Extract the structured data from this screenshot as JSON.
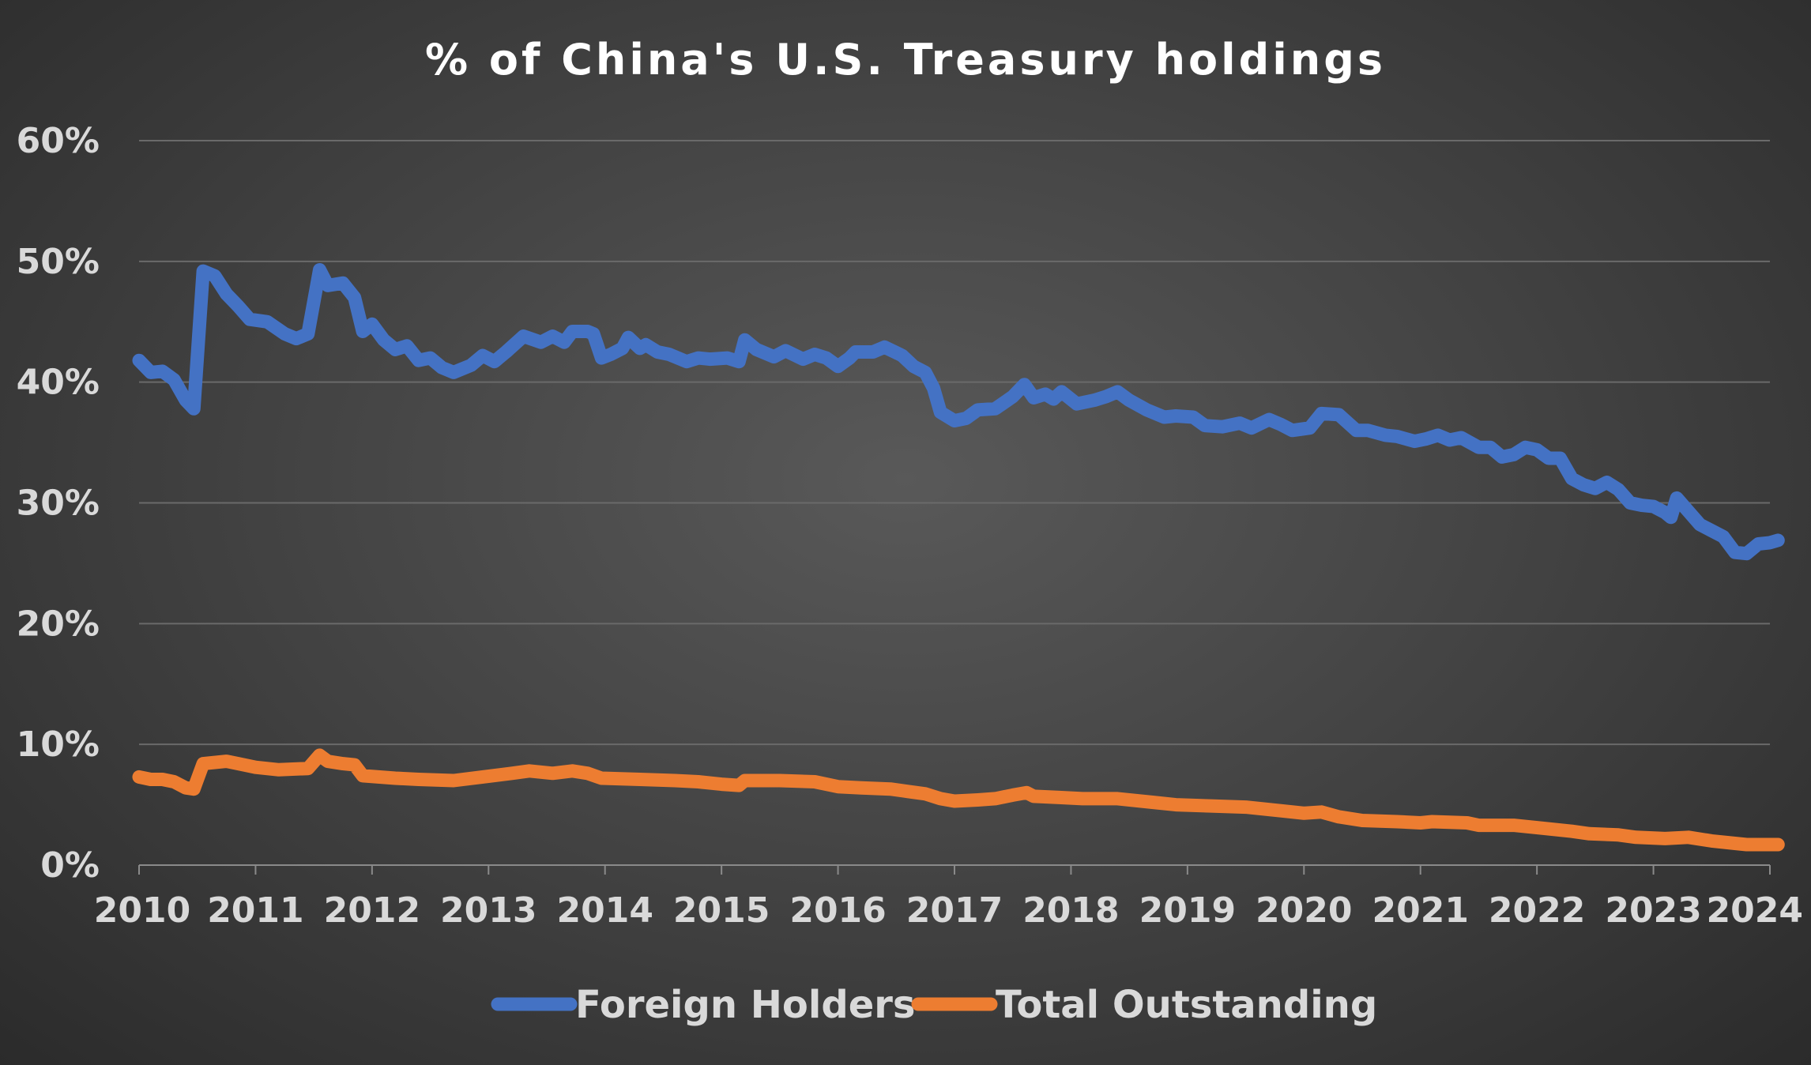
{
  "chart_data": {
    "type": "line",
    "title": "% of China's U.S. Treasury holdings",
    "xlabel": "",
    "ylabel": "",
    "xlim": [
      2010,
      2024
    ],
    "ylim": [
      0,
      60
    ],
    "x_ticks": [
      "2010",
      "2011",
      "2012",
      "2013",
      "2014",
      "2015",
      "2016",
      "2017",
      "2018",
      "2019",
      "2020",
      "2021",
      "2022",
      "2023",
      "2024"
    ],
    "y_ticks": [
      "0%",
      "10%",
      "20%",
      "30%",
      "40%",
      "50%",
      "60%"
    ],
    "grid": true,
    "legend": "bottom",
    "series": [
      {
        "name": "Foreign Holders",
        "color": "#4472C4",
        "points": [
          [
            2010.0,
            41.8
          ],
          [
            2010.1,
            40.8
          ],
          [
            2010.2,
            40.9
          ],
          [
            2010.3,
            40.2
          ],
          [
            2010.4,
            38.5
          ],
          [
            2010.47,
            37.8
          ],
          [
            2010.55,
            49.2
          ],
          [
            2010.65,
            48.8
          ],
          [
            2010.75,
            47.3
          ],
          [
            2010.85,
            46.3
          ],
          [
            2010.95,
            45.2
          ],
          [
            2011.1,
            45.0
          ],
          [
            2011.25,
            44.0
          ],
          [
            2011.35,
            43.6
          ],
          [
            2011.45,
            44.0
          ],
          [
            2011.55,
            49.3
          ],
          [
            2011.62,
            48.0
          ],
          [
            2011.75,
            48.2
          ],
          [
            2011.85,
            47.0
          ],
          [
            2011.92,
            44.2
          ],
          [
            2012.0,
            44.8
          ],
          [
            2012.1,
            43.5
          ],
          [
            2012.2,
            42.7
          ],
          [
            2012.3,
            43.0
          ],
          [
            2012.4,
            41.8
          ],
          [
            2012.5,
            42.0
          ],
          [
            2012.6,
            41.2
          ],
          [
            2012.7,
            40.8
          ],
          [
            2012.85,
            41.4
          ],
          [
            2012.95,
            42.2
          ],
          [
            2013.05,
            41.7
          ],
          [
            2013.15,
            42.5
          ],
          [
            2013.3,
            43.8
          ],
          [
            2013.45,
            43.3
          ],
          [
            2013.55,
            43.8
          ],
          [
            2013.65,
            43.3
          ],
          [
            2013.72,
            44.2
          ],
          [
            2013.85,
            44.2
          ],
          [
            2013.9,
            44.0
          ],
          [
            2013.97,
            42.0
          ],
          [
            2014.05,
            42.3
          ],
          [
            2014.15,
            42.8
          ],
          [
            2014.2,
            43.7
          ],
          [
            2014.3,
            42.8
          ],
          [
            2014.35,
            43.1
          ],
          [
            2014.45,
            42.5
          ],
          [
            2014.55,
            42.3
          ],
          [
            2014.7,
            41.7
          ],
          [
            2014.8,
            42.0
          ],
          [
            2014.9,
            41.9
          ],
          [
            2015.05,
            42.0
          ],
          [
            2015.15,
            41.7
          ],
          [
            2015.2,
            43.5
          ],
          [
            2015.3,
            42.7
          ],
          [
            2015.45,
            42.1
          ],
          [
            2015.55,
            42.6
          ],
          [
            2015.7,
            41.9
          ],
          [
            2015.8,
            42.3
          ],
          [
            2015.9,
            42.0
          ],
          [
            2016.0,
            41.3
          ],
          [
            2016.1,
            42.0
          ],
          [
            2016.15,
            42.5
          ],
          [
            2016.3,
            42.5
          ],
          [
            2016.4,
            42.9
          ],
          [
            2016.55,
            42.2
          ],
          [
            2016.65,
            41.3
          ],
          [
            2016.75,
            40.8
          ],
          [
            2016.82,
            39.5
          ],
          [
            2016.88,
            37.5
          ],
          [
            2017.0,
            36.8
          ],
          [
            2017.1,
            37.0
          ],
          [
            2017.2,
            37.7
          ],
          [
            2017.35,
            37.8
          ],
          [
            2017.5,
            38.8
          ],
          [
            2017.6,
            39.8
          ],
          [
            2017.68,
            38.7
          ],
          [
            2017.78,
            39.0
          ],
          [
            2017.85,
            38.6
          ],
          [
            2017.92,
            39.2
          ],
          [
            2018.05,
            38.2
          ],
          [
            2018.2,
            38.5
          ],
          [
            2018.3,
            38.8
          ],
          [
            2018.4,
            39.2
          ],
          [
            2018.5,
            38.5
          ],
          [
            2018.65,
            37.7
          ],
          [
            2018.8,
            37.1
          ],
          [
            2018.9,
            37.2
          ],
          [
            2019.05,
            37.1
          ],
          [
            2019.15,
            36.4
          ],
          [
            2019.3,
            36.3
          ],
          [
            2019.45,
            36.6
          ],
          [
            2019.55,
            36.2
          ],
          [
            2019.7,
            36.9
          ],
          [
            2019.8,
            36.5
          ],
          [
            2019.9,
            36.0
          ],
          [
            2020.05,
            36.2
          ],
          [
            2020.15,
            37.4
          ],
          [
            2020.3,
            37.3
          ],
          [
            2020.45,
            36.0
          ],
          [
            2020.55,
            36.0
          ],
          [
            2020.7,
            35.6
          ],
          [
            2020.8,
            35.5
          ],
          [
            2020.95,
            35.1
          ],
          [
            2021.05,
            35.3
          ],
          [
            2021.15,
            35.6
          ],
          [
            2021.25,
            35.2
          ],
          [
            2021.35,
            35.4
          ],
          [
            2021.5,
            34.6
          ],
          [
            2021.6,
            34.6
          ],
          [
            2021.7,
            33.8
          ],
          [
            2021.8,
            34.0
          ],
          [
            2021.9,
            34.6
          ],
          [
            2022.0,
            34.4
          ],
          [
            2022.1,
            33.7
          ],
          [
            2022.2,
            33.7
          ],
          [
            2022.3,
            32.0
          ],
          [
            2022.4,
            31.5
          ],
          [
            2022.5,
            31.2
          ],
          [
            2022.6,
            31.7
          ],
          [
            2022.7,
            31.1
          ],
          [
            2022.8,
            30.0
          ],
          [
            2022.9,
            29.8
          ],
          [
            2023.0,
            29.7
          ],
          [
            2023.1,
            29.2
          ],
          [
            2023.15,
            28.8
          ],
          [
            2023.2,
            30.4
          ],
          [
            2023.3,
            29.3
          ],
          [
            2023.4,
            28.2
          ],
          [
            2023.5,
            27.7
          ],
          [
            2023.6,
            27.2
          ],
          [
            2023.7,
            25.9
          ],
          [
            2023.8,
            25.8
          ],
          [
            2023.9,
            26.6
          ],
          [
            2024.0,
            26.7
          ],
          [
            2024.07,
            26.9
          ]
        ]
      },
      {
        "name": "Total Outstanding",
        "color": "#ED7D31",
        "points": [
          [
            2010.0,
            7.3
          ],
          [
            2010.1,
            7.1
          ],
          [
            2010.2,
            7.1
          ],
          [
            2010.3,
            6.9
          ],
          [
            2010.4,
            6.4
          ],
          [
            2010.47,
            6.3
          ],
          [
            2010.55,
            8.4
          ],
          [
            2010.75,
            8.6
          ],
          [
            2010.85,
            8.4
          ],
          [
            2011.0,
            8.1
          ],
          [
            2011.2,
            7.9
          ],
          [
            2011.45,
            8.0
          ],
          [
            2011.55,
            9.1
          ],
          [
            2011.62,
            8.6
          ],
          [
            2011.75,
            8.4
          ],
          [
            2011.85,
            8.3
          ],
          [
            2011.92,
            7.4
          ],
          [
            2012.2,
            7.2
          ],
          [
            2012.4,
            7.1
          ],
          [
            2012.7,
            7.0
          ],
          [
            2012.95,
            7.3
          ],
          [
            2013.2,
            7.6
          ],
          [
            2013.35,
            7.8
          ],
          [
            2013.55,
            7.6
          ],
          [
            2013.72,
            7.8
          ],
          [
            2013.85,
            7.6
          ],
          [
            2013.97,
            7.2
          ],
          [
            2014.3,
            7.1
          ],
          [
            2014.6,
            7.0
          ],
          [
            2014.8,
            6.9
          ],
          [
            2015.0,
            6.7
          ],
          [
            2015.15,
            6.6
          ],
          [
            2015.2,
            7.0
          ],
          [
            2015.5,
            7.0
          ],
          [
            2015.8,
            6.9
          ],
          [
            2016.0,
            6.5
          ],
          [
            2016.2,
            6.4
          ],
          [
            2016.45,
            6.3
          ],
          [
            2016.6,
            6.1
          ],
          [
            2016.75,
            5.9
          ],
          [
            2016.88,
            5.5
          ],
          [
            2017.0,
            5.3
          ],
          [
            2017.2,
            5.4
          ],
          [
            2017.35,
            5.5
          ],
          [
            2017.5,
            5.8
          ],
          [
            2017.62,
            6.0
          ],
          [
            2017.68,
            5.7
          ],
          [
            2017.9,
            5.6
          ],
          [
            2018.1,
            5.5
          ],
          [
            2018.4,
            5.5
          ],
          [
            2018.7,
            5.2
          ],
          [
            2018.9,
            5.0
          ],
          [
            2019.2,
            4.9
          ],
          [
            2019.5,
            4.8
          ],
          [
            2019.8,
            4.5
          ],
          [
            2020.0,
            4.3
          ],
          [
            2020.15,
            4.4
          ],
          [
            2020.3,
            4.0
          ],
          [
            2020.5,
            3.7
          ],
          [
            2020.8,
            3.6
          ],
          [
            2021.0,
            3.5
          ],
          [
            2021.1,
            3.6
          ],
          [
            2021.4,
            3.5
          ],
          [
            2021.5,
            3.3
          ],
          [
            2021.8,
            3.3
          ],
          [
            2022.0,
            3.1
          ],
          [
            2022.3,
            2.8
          ],
          [
            2022.45,
            2.6
          ],
          [
            2022.7,
            2.5
          ],
          [
            2022.85,
            2.3
          ],
          [
            2023.1,
            2.2
          ],
          [
            2023.3,
            2.3
          ],
          [
            2023.5,
            2.0
          ],
          [
            2023.7,
            1.8
          ],
          [
            2023.8,
            1.7
          ],
          [
            2024.07,
            1.7
          ]
        ]
      }
    ]
  }
}
